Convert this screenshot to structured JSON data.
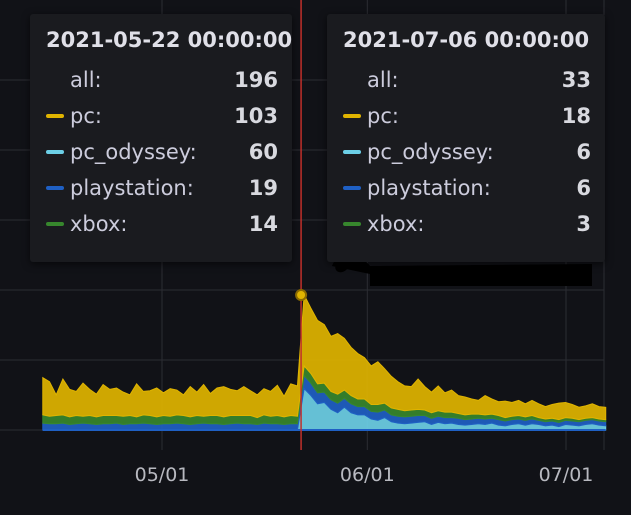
{
  "colors": {
    "background": "#111217",
    "grid": "#2c2d33",
    "crosshair": "#c0302b",
    "pc": "#e0b400",
    "pc_odyssey": "#6ccfe6",
    "playstation": "#1f60c4",
    "xbox": "#37872d"
  },
  "tooltips": [
    {
      "header": "2021-05-22 00:00:00",
      "rows": [
        {
          "label": "all:",
          "value": "196",
          "swatch": ""
        },
        {
          "label": "pc:",
          "value": "103",
          "swatch": "#e0b400"
        },
        {
          "label": "pc_odyssey:",
          "value": "60",
          "swatch": "#6ccfe6"
        },
        {
          "label": "playstation:",
          "value": "19",
          "swatch": "#1f60c4"
        },
        {
          "label": "xbox:",
          "value": "14",
          "swatch": "#37872d"
        }
      ]
    },
    {
      "header": "2021-07-06 00:00:00",
      "rows": [
        {
          "label": "all:",
          "value": "33",
          "swatch": ""
        },
        {
          "label": "pc:",
          "value": "18",
          "swatch": "#e0b400"
        },
        {
          "label": "pc_odyssey:",
          "value": "6",
          "swatch": "#6ccfe6"
        },
        {
          "label": "playstation:",
          "value": "6",
          "swatch": "#1f60c4"
        },
        {
          "label": "xbox:",
          "value": "3",
          "swatch": "#37872d"
        }
      ]
    }
  ],
  "chart_data": {
    "type": "area",
    "stacked": true,
    "x_ticks": [
      "05/01",
      "06/01",
      "07/01"
    ],
    "x_tick_dates": [
      "2021-05-01",
      "2021-06-01",
      "2021-07-01"
    ],
    "x_start": "2021-04-13",
    "x_end": "2021-07-07",
    "y_range": [
      0,
      200
    ],
    "grid": true,
    "crosshair_date": "2021-05-22",
    "highlight_point": {
      "date": "2021-05-22",
      "value": 196
    },
    "series": [
      {
        "name": "pc_odyssey",
        "color": "#6ccfe6",
        "values": [
          0,
          0,
          0,
          0,
          0,
          0,
          0,
          0,
          0,
          0,
          0,
          0,
          0,
          0,
          0,
          0,
          0,
          0,
          0,
          0,
          0,
          0,
          0,
          0,
          0,
          0,
          0,
          0,
          0,
          0,
          0,
          0,
          0,
          0,
          0,
          0,
          0,
          0,
          0,
          60,
          50,
          38,
          40,
          30,
          25,
          33,
          25,
          22,
          22,
          16,
          14,
          18,
          12,
          10,
          9,
          10,
          11,
          12,
          8,
          11,
          9,
          10,
          8,
          7,
          8,
          9,
          8,
          10,
          7,
          6,
          8,
          9,
          7,
          9,
          8,
          6,
          7,
          5,
          8,
          7,
          6,
          8,
          9,
          7,
          6
        ]
      },
      {
        "name": "playstation",
        "color": "#1f60c4",
        "values": [
          10,
          9,
          9,
          10,
          8,
          9,
          10,
          9,
          8,
          9,
          9,
          10,
          8,
          9,
          9,
          10,
          9,
          8,
          9,
          9,
          10,
          9,
          8,
          9,
          10,
          9,
          9,
          8,
          9,
          10,
          9,
          9,
          8,
          10,
          9,
          9,
          8,
          9,
          9,
          19,
          18,
          16,
          15,
          14,
          14,
          13,
          13,
          12,
          12,
          11,
          12,
          11,
          10,
          10,
          10,
          10,
          10,
          9,
          9,
          9,
          9,
          8,
          9,
          8,
          8,
          8,
          8,
          7,
          8,
          7,
          7,
          7,
          7,
          7,
          6,
          6,
          6,
          6,
          6,
          6,
          6,
          6,
          6,
          6,
          6
        ]
      },
      {
        "name": "xbox",
        "color": "#37872d",
        "values": [
          12,
          11,
          12,
          12,
          11,
          12,
          10,
          12,
          11,
          12,
          12,
          11,
          12,
          12,
          10,
          12,
          12,
          11,
          12,
          11,
          12,
          12,
          11,
          12,
          10,
          12,
          12,
          11,
          12,
          11,
          12,
          12,
          10,
          12,
          11,
          12,
          11,
          12,
          11,
          14,
          14,
          13,
          13,
          12,
          13,
          12,
          12,
          11,
          11,
          10,
          11,
          10,
          10,
          10,
          9,
          9,
          9,
          8,
          8,
          8,
          8,
          8,
          7,
          7,
          7,
          6,
          6,
          6,
          6,
          5,
          5,
          5,
          5,
          5,
          4,
          4,
          4,
          4,
          4,
          4,
          3,
          3,
          3,
          3,
          3
        ]
      },
      {
        "name": "pc",
        "color": "#e0b400",
        "values": [
          54,
          50,
          30,
          52,
          40,
          35,
          48,
          38,
          33,
          45,
          38,
          40,
          35,
          30,
          48,
          34,
          36,
          42,
          33,
          40,
          36,
          30,
          44,
          34,
          46,
          32,
          40,
          44,
          38,
          36,
          42,
          36,
          33,
          38,
          36,
          44,
          30,
          46,
          44,
          103,
          95,
          92,
          85,
          80,
          88,
          75,
          70,
          66,
          60,
          56,
          62,
          50,
          46,
          40,
          36,
          34,
          44,
          34,
          30,
          36,
          28,
          32,
          26,
          26,
          22,
          20,
          28,
          22,
          20,
          24,
          20,
          22,
          19,
          22,
          20,
          18,
          20,
          24,
          22,
          20,
          18,
          18,
          20,
          18,
          18
        ]
      }
    ]
  }
}
